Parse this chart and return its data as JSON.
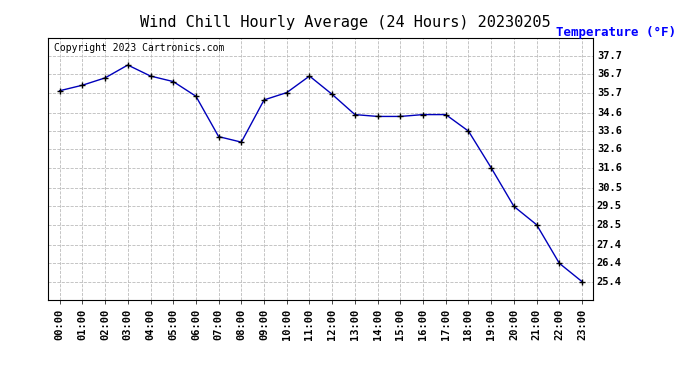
{
  "title": "Wind Chill Hourly Average (24 Hours) 20230205",
  "ylabel": "Temperature (°F)",
  "copyright": "Copyright 2023 Cartronics.com",
  "x_labels": [
    "00:00",
    "01:00",
    "02:00",
    "03:00",
    "04:00",
    "05:00",
    "06:00",
    "07:00",
    "08:00",
    "09:00",
    "10:00",
    "11:00",
    "12:00",
    "13:00",
    "14:00",
    "15:00",
    "16:00",
    "17:00",
    "18:00",
    "19:00",
    "20:00",
    "21:00",
    "22:00",
    "23:00"
  ],
  "y_values": [
    35.8,
    36.1,
    36.5,
    37.2,
    36.6,
    36.3,
    35.5,
    33.3,
    33.0,
    35.3,
    35.7,
    36.6,
    35.6,
    34.5,
    34.4,
    34.4,
    34.5,
    34.5,
    33.6,
    31.6,
    29.5,
    28.5,
    26.4,
    25.4
  ],
  "ylim_min": 24.4,
  "ylim_max": 38.7,
  "yticks": [
    25.4,
    26.4,
    27.4,
    28.5,
    29.5,
    30.5,
    31.6,
    32.6,
    33.6,
    34.6,
    35.7,
    36.7,
    37.7
  ],
  "line_color": "#0000bb",
  "marker_color": "#000000",
  "grid_color": "#bbbbbb",
  "bg_color": "#ffffff",
  "title_fontsize": 11,
  "label_fontsize": 9,
  "tick_fontsize": 7.5,
  "copyright_fontsize": 7
}
